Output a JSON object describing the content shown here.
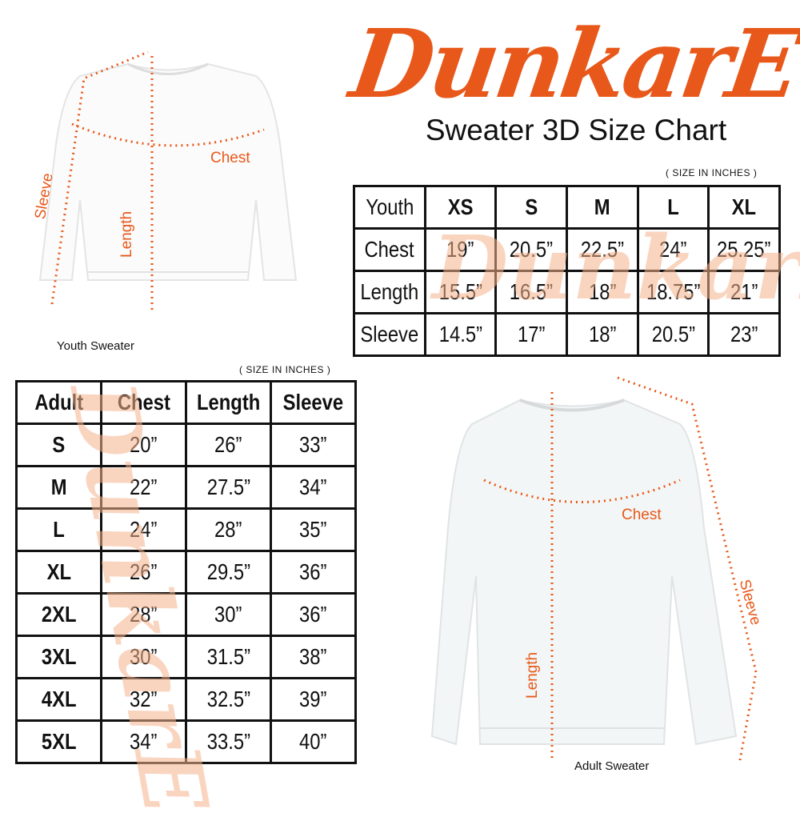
{
  "brand": {
    "logo_text": "DunkarE",
    "color": "#e8581a"
  },
  "title": "Sweater 3D Size Chart",
  "units_note": "( SIZE IN INCHES )",
  "youth_sweater": {
    "caption": "Youth Sweater",
    "labels": {
      "chest": "Chest",
      "length": "Length",
      "sleeve": "Sleeve"
    }
  },
  "adult_sweater": {
    "caption": "Adult Sweater",
    "labels": {
      "chest": "Chest",
      "length": "Length",
      "sleeve": "Sleeve"
    }
  },
  "youth_table": {
    "header": [
      "Youth",
      "XS",
      "S",
      "M",
      "L",
      "XL"
    ],
    "rows": [
      [
        "Chest",
        "19”",
        "20.5”",
        "22.5”",
        "24”",
        "25.25”"
      ],
      [
        "Length",
        "15.5”",
        "16.5”",
        "18”",
        "18.75”",
        "21”"
      ],
      [
        "Sleeve",
        "14.5”",
        "17”",
        "18”",
        "20.5”",
        "23”"
      ]
    ]
  },
  "adult_table": {
    "header": [
      "Adult",
      "Chest",
      "Length",
      "Sleeve"
    ],
    "rows": [
      [
        "S",
        "20”",
        "26”",
        "33”"
      ],
      [
        "M",
        "22”",
        "27.5”",
        "34”"
      ],
      [
        "L",
        "24”",
        "28”",
        "35”"
      ],
      [
        "XL",
        "26”",
        "29.5”",
        "36”"
      ],
      [
        "2XL",
        "28”",
        "30”",
        "36”"
      ],
      [
        "3XL",
        "30”",
        "31.5”",
        "38”"
      ],
      [
        "4XL",
        "32”",
        "32.5”",
        "39”"
      ],
      [
        "5XL",
        "34”",
        "33.5”",
        "40”"
      ]
    ]
  }
}
